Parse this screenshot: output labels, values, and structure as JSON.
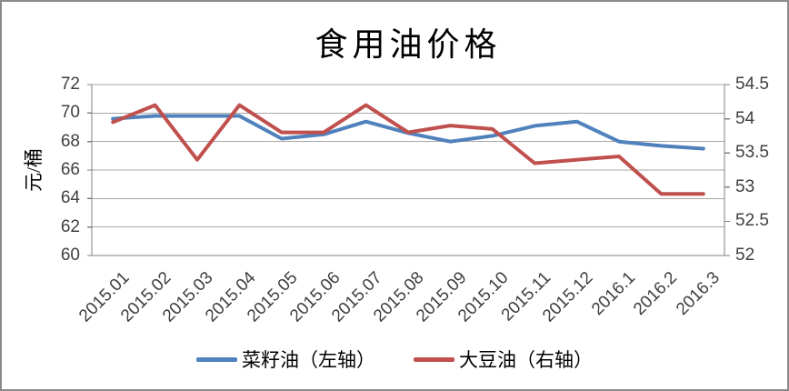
{
  "chart_data": {
    "type": "line",
    "title": "食用油价格",
    "categories": [
      "2015.01",
      "2015.02",
      "2015.03",
      "2015.04",
      "2015.05",
      "2015.06",
      "2015.07",
      "2015.08",
      "2015.09",
      "2015.10",
      "2015.11",
      "2015.12",
      "2016.1",
      "2016.2",
      "2016.3"
    ],
    "series": [
      {
        "name": "菜籽油（左轴）",
        "axis": "left",
        "color": "#4F81BD",
        "values": [
          69.6,
          69.8,
          69.8,
          69.8,
          68.2,
          68.5,
          69.4,
          68.6,
          68.0,
          68.4,
          69.1,
          69.4,
          68.0,
          67.7,
          67.5
        ]
      },
      {
        "name": "大豆油（右轴）",
        "axis": "right",
        "color": "#C0504D",
        "values": [
          53.95,
          54.2,
          53.4,
          54.2,
          53.8,
          53.8,
          54.2,
          53.8,
          53.9,
          53.85,
          53.35,
          53.4,
          53.45,
          52.9,
          52.9
        ]
      }
    ],
    "y_left": {
      "title": "元/桶",
      "min": 60,
      "max": 72,
      "step": 2,
      "tick_labels": [
        "60",
        "62",
        "64",
        "66",
        "68",
        "70",
        "72"
      ]
    },
    "y_right": {
      "min": 52,
      "max": 54.5,
      "step": 0.5,
      "tick_labels": [
        "52",
        "52.5",
        "53",
        "53.5",
        "54",
        "54.5"
      ]
    },
    "grid": true,
    "legend_position": "bottom",
    "axis_color": "#808080",
    "grid_color": "#a8a8a8",
    "tick_label_color": "#3f3f3f",
    "line_width": 4
  }
}
